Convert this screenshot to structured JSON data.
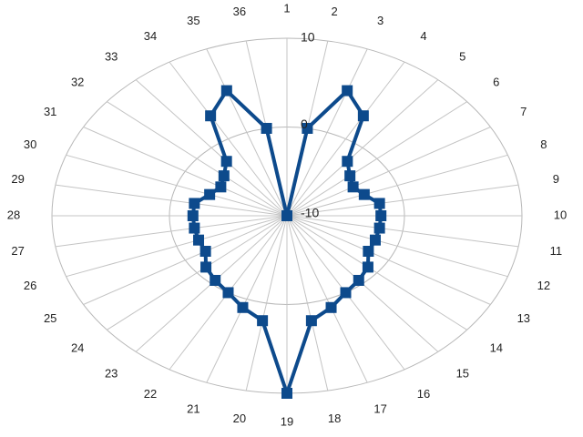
{
  "chart_data": {
    "type": "radar",
    "title": "",
    "categories": [
      "1",
      "2",
      "3",
      "4",
      "5",
      "6",
      "7",
      "8",
      "9",
      "10",
      "11",
      "12",
      "13",
      "14",
      "15",
      "16",
      "17",
      "18",
      "19",
      "20",
      "21",
      "22",
      "23",
      "24",
      "25",
      "26",
      "27",
      "28",
      "29",
      "30",
      "31",
      "32",
      "33",
      "34",
      "35",
      "36"
    ],
    "axis": {
      "min": -10,
      "max": 10,
      "ticks": [
        -10,
        0,
        10
      ]
    },
    "grid": true,
    "legend": "none",
    "series": [
      {
        "color": "#0d4a8c",
        "values": [
          -10,
          0,
          5,
          3,
          -2,
          -3,
          -3.5,
          -3,
          -2,
          -2,
          -2,
          -2,
          -2,
          -1,
          -0.5,
          0,
          1,
          2,
          10,
          2,
          1,
          0,
          -0.5,
          -1,
          -2,
          -2,
          -2,
          -2,
          -2,
          -3,
          -3.5,
          -3,
          -2,
          3,
          5,
          0
        ]
      }
    ]
  }
}
